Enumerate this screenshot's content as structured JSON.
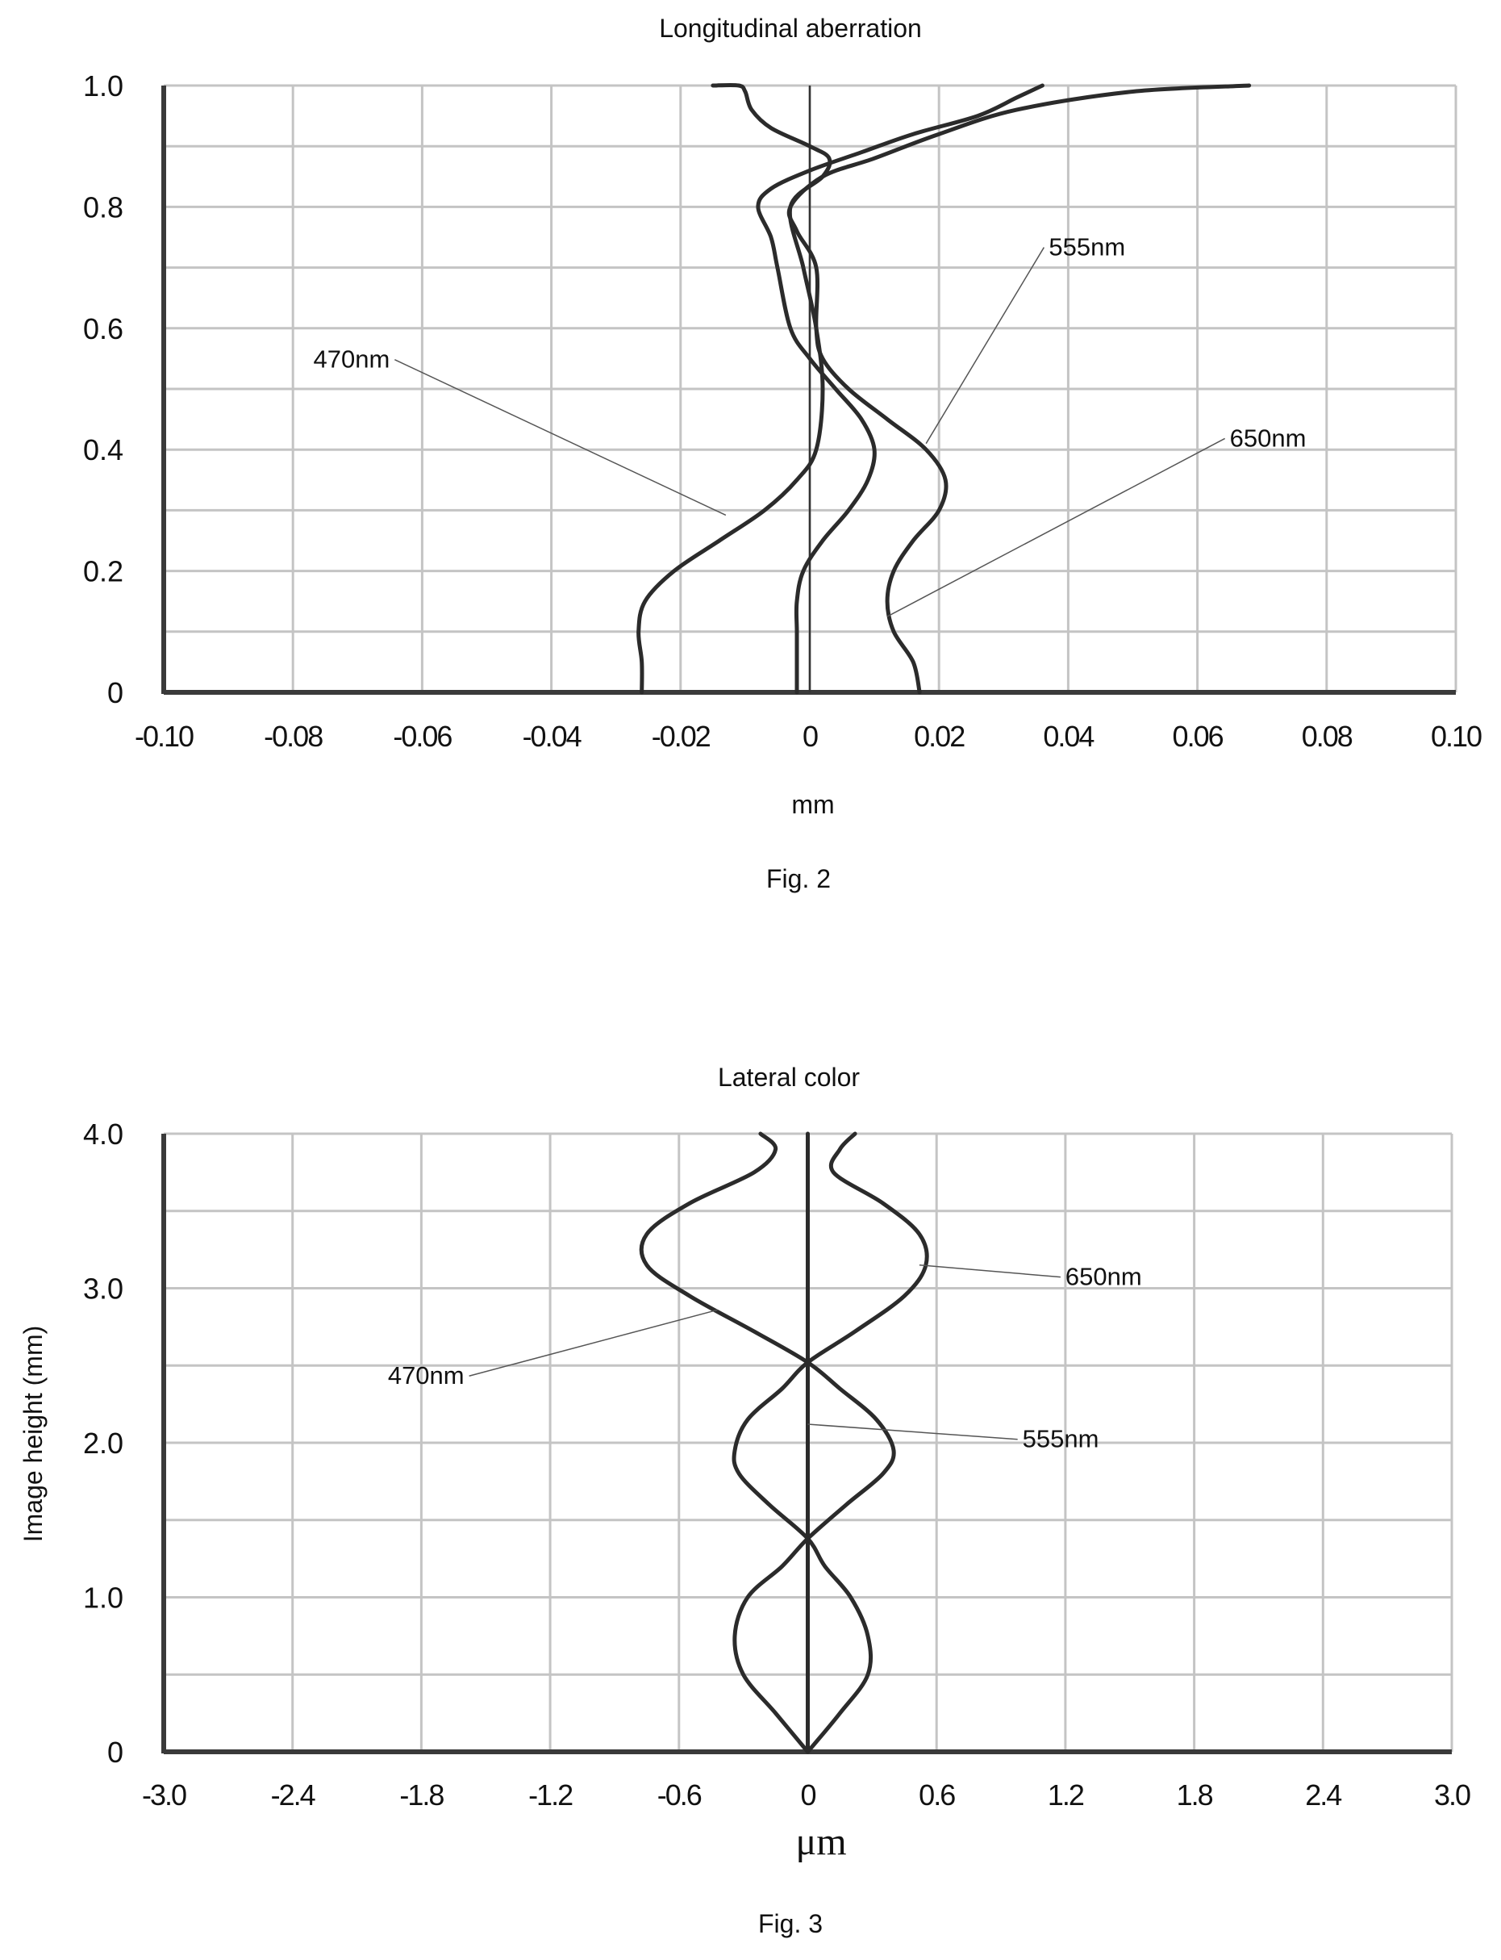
{
  "colors": {
    "curve": "#2b2b2b",
    "grid": "#c4c4c4",
    "axis": "#3a3a3a",
    "leader": "#555555"
  },
  "chart_data": [
    {
      "type": "line",
      "title": "Longitudinal aberration",
      "caption": "Fig. 2",
      "xlabel": "mm",
      "ylabel": "",
      "xlim": [
        -0.1,
        0.1
      ],
      "ylim": [
        0,
        1.0
      ],
      "grid": true,
      "x_ticks": [
        "-0.10",
        "-0.08",
        "-0.06",
        "-0.04",
        "-0.02",
        "0",
        "0.02",
        "0.04",
        "0.06",
        "0.08",
        "0.10"
      ],
      "y_ticks": [
        "0",
        "0.2",
        "0.4",
        "0.6",
        "0.8",
        "1.0"
      ],
      "series": [
        {
          "name": "470nm",
          "label_anchor": [
            -0.065,
            0.535
          ],
          "leader_to": [
            -0.013,
            0.292
          ],
          "points": [
            [
              -0.026,
              0.0
            ],
            [
              -0.026,
              0.05
            ],
            [
              -0.0265,
              0.1
            ],
            [
              -0.0255,
              0.15
            ],
            [
              -0.021,
              0.2
            ],
            [
              -0.014,
              0.25
            ],
            [
              -0.007,
              0.3
            ],
            [
              -0.002,
              0.35
            ],
            [
              0.001,
              0.4
            ],
            [
              0.002,
              0.5
            ],
            [
              0.001,
              0.6
            ],
            [
              -0.001,
              0.7
            ],
            [
              -0.003,
              0.8
            ],
            [
              0.002,
              0.85
            ],
            [
              0.003,
              0.88
            ],
            [
              0.0,
              0.9
            ],
            [
              -0.006,
              0.93
            ],
            [
              -0.009,
              0.96
            ],
            [
              -0.01,
              0.99
            ],
            [
              -0.011,
              1.0
            ],
            [
              -0.015,
              1.0
            ]
          ]
        },
        {
          "name": "555nm",
          "label_anchor": [
            0.037,
            0.72
          ],
          "leader_to": [
            0.018,
            0.41
          ],
          "points": [
            [
              -0.002,
              0.0
            ],
            [
              -0.002,
              0.05
            ],
            [
              -0.002,
              0.1
            ],
            [
              -0.002,
              0.15
            ],
            [
              -0.001,
              0.2
            ],
            [
              0.002,
              0.25
            ],
            [
              0.006,
              0.3
            ],
            [
              0.009,
              0.35
            ],
            [
              0.01,
              0.4
            ],
            [
              0.008,
              0.45
            ],
            [
              0.004,
              0.5
            ],
            [
              0.0,
              0.55
            ],
            [
              -0.003,
              0.6
            ],
            [
              -0.005,
              0.7
            ],
            [
              -0.006,
              0.75
            ],
            [
              -0.008,
              0.8
            ],
            [
              -0.006,
              0.83
            ],
            [
              0.0,
              0.86
            ],
            [
              0.008,
              0.89
            ],
            [
              0.016,
              0.92
            ],
            [
              0.026,
              0.95
            ],
            [
              0.032,
              0.98
            ],
            [
              0.036,
              1.0
            ]
          ]
        },
        {
          "name": "650nm",
          "label_anchor": [
            0.065,
            0.405
          ],
          "leader_to": [
            0.012,
            0.125
          ],
          "points": [
            [
              0.017,
              0.0
            ],
            [
              0.016,
              0.05
            ],
            [
              0.013,
              0.1
            ],
            [
              0.012,
              0.15
            ],
            [
              0.013,
              0.2
            ],
            [
              0.016,
              0.25
            ],
            [
              0.02,
              0.3
            ],
            [
              0.021,
              0.35
            ],
            [
              0.018,
              0.4
            ],
            [
              0.012,
              0.45
            ],
            [
              0.006,
              0.5
            ],
            [
              0.002,
              0.55
            ],
            [
              0.001,
              0.6
            ],
            [
              0.001,
              0.7
            ],
            [
              -0.002,
              0.76
            ],
            [
              -0.003,
              0.8
            ],
            [
              0.002,
              0.85
            ],
            [
              0.01,
              0.88
            ],
            [
              0.02,
              0.92
            ],
            [
              0.032,
              0.96
            ],
            [
              0.05,
              0.99
            ],
            [
              0.068,
              1.0
            ]
          ]
        }
      ]
    },
    {
      "type": "line",
      "title": "Lateral color",
      "caption": "Fig. 3",
      "xlabel": "μm",
      "ylabel": "Image height (mm)",
      "xlim": [
        -3.0,
        3.0
      ],
      "ylim": [
        0,
        4.0
      ],
      "grid": true,
      "x_ticks": [
        "-3.0",
        "-2.4",
        "-1.8",
        "-1.2",
        "-0.6",
        "0",
        "0.6",
        "1.2",
        "1.8",
        "2.4",
        "3.0"
      ],
      "y_ticks": [
        "0",
        "1.0",
        "2.0",
        "3.0",
        "4.0"
      ],
      "series": [
        {
          "name": "470nm",
          "label_anchor": [
            -1.6,
            2.38
          ],
          "leader_to": [
            -0.42,
            2.86
          ],
          "points": [
            [
              0.0,
              0.0
            ],
            [
              -0.15,
              0.25
            ],
            [
              -0.3,
              0.5
            ],
            [
              -0.34,
              0.75
            ],
            [
              -0.28,
              1.0
            ],
            [
              -0.12,
              1.2
            ],
            [
              0.0,
              1.38
            ],
            [
              0.18,
              1.6
            ],
            [
              0.35,
              1.8
            ],
            [
              0.4,
              1.95
            ],
            [
              0.32,
              2.15
            ],
            [
              0.15,
              2.35
            ],
            [
              0.0,
              2.52
            ],
            [
              -0.25,
              2.72
            ],
            [
              -0.55,
              2.95
            ],
            [
              -0.75,
              3.15
            ],
            [
              -0.75,
              3.35
            ],
            [
              -0.55,
              3.55
            ],
            [
              -0.25,
              3.75
            ],
            [
              -0.15,
              3.9
            ],
            [
              -0.22,
              4.0
            ]
          ]
        },
        {
          "name": "555nm",
          "label_anchor": [
            1.0,
            1.97
          ],
          "leader_to": [
            0.0,
            2.12
          ],
          "points": [
            [
              0.0,
              0.0
            ],
            [
              0.0,
              1.0
            ],
            [
              0.0,
              2.0
            ],
            [
              0.0,
              3.0
            ],
            [
              0.0,
              4.0
            ]
          ]
        },
        {
          "name": "650nm",
          "label_anchor": [
            1.2,
            3.02
          ],
          "leader_to": [
            0.52,
            3.15
          ],
          "points": [
            [
              0.0,
              0.0
            ],
            [
              0.15,
              0.25
            ],
            [
              0.28,
              0.5
            ],
            [
              0.28,
              0.75
            ],
            [
              0.2,
              1.0
            ],
            [
              0.08,
              1.2
            ],
            [
              0.0,
              1.38
            ],
            [
              -0.18,
              1.6
            ],
            [
              -0.32,
              1.8
            ],
            [
              -0.34,
              1.95
            ],
            [
              -0.28,
              2.15
            ],
            [
              -0.12,
              2.35
            ],
            [
              0.0,
              2.52
            ],
            [
              0.22,
              2.72
            ],
            [
              0.45,
              2.95
            ],
            [
              0.55,
              3.15
            ],
            [
              0.52,
              3.35
            ],
            [
              0.35,
              3.55
            ],
            [
              0.12,
              3.75
            ],
            [
              0.15,
              3.9
            ],
            [
              0.22,
              4.0
            ]
          ]
        }
      ]
    }
  ]
}
